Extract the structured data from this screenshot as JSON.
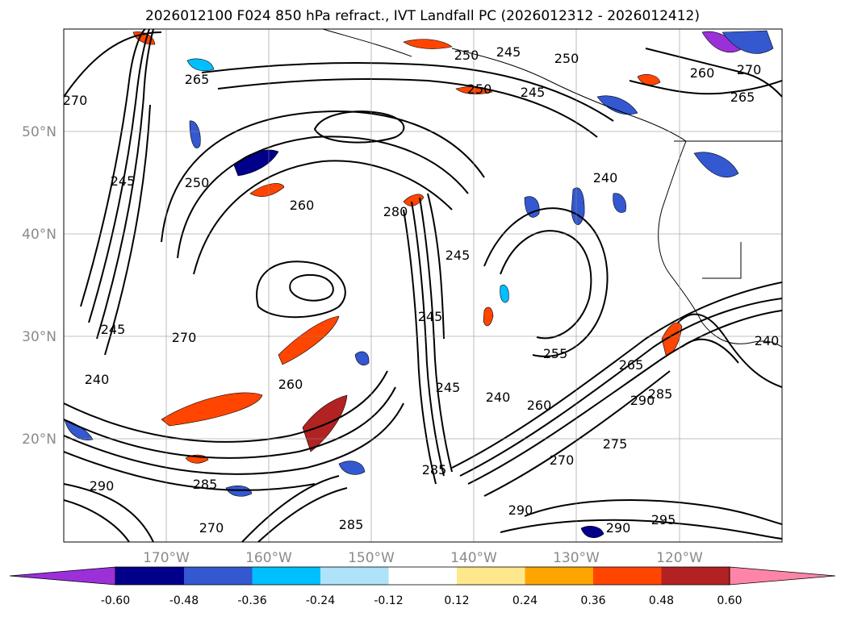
{
  "title": "2026012100 F024 850 hPa refract., IVT Landfall PC (2026012312 - 2026012412)",
  "map": {
    "lat_labels": [
      "50°N",
      "40°N",
      "30°N",
      "20°N"
    ],
    "lon_labels": [
      "170°W",
      "160°W",
      "150°W",
      "140°W",
      "130°W",
      "120°W"
    ],
    "contour_labels": [
      {
        "text": "250"
      },
      {
        "text": "245"
      },
      {
        "text": "250"
      },
      {
        "text": "250"
      },
      {
        "text": "245"
      },
      {
        "text": "270"
      },
      {
        "text": "265"
      },
      {
        "text": "260"
      },
      {
        "text": "265"
      },
      {
        "text": "270"
      },
      {
        "text": "250"
      },
      {
        "text": "245"
      },
      {
        "text": "260"
      },
      {
        "text": "280"
      },
      {
        "text": "245"
      },
      {
        "text": "245"
      },
      {
        "text": "240"
      },
      {
        "text": "240"
      },
      {
        "text": "245"
      },
      {
        "text": "270"
      },
      {
        "text": "245"
      },
      {
        "text": "240"
      },
      {
        "text": "255"
      },
      {
        "text": "260"
      },
      {
        "text": "290"
      },
      {
        "text": "285"
      },
      {
        "text": "270"
      },
      {
        "text": "275"
      },
      {
        "text": "285"
      },
      {
        "text": "290"
      },
      {
        "text": "290"
      },
      {
        "text": "285"
      },
      {
        "text": "290"
      },
      {
        "text": "295"
      },
      {
        "text": "285"
      },
      {
        "text": "240"
      },
      {
        "text": "265"
      },
      {
        "text": "270"
      },
      {
        "text": "260"
      }
    ]
  },
  "colorbar": {
    "ticks": [
      "-0.60",
      "-0.48",
      "-0.36",
      "-0.24",
      "-0.12",
      "0.12",
      "0.24",
      "0.36",
      "0.48",
      "0.60"
    ],
    "colors": [
      "#9b30d9",
      "#00008b",
      "#3458d0",
      "#00bfff",
      "#aee3f9",
      "#ffffff",
      "#ffe88c",
      "#ffa500",
      "#ff4500",
      "#b22222",
      "#ff85a8"
    ]
  }
}
